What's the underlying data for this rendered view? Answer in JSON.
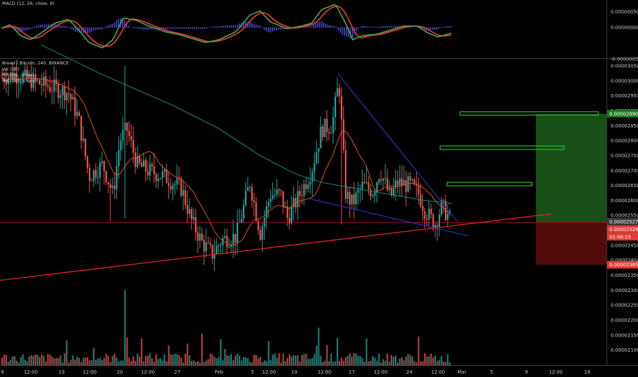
{
  "macd_panel": {
    "legend": "MACD (12, 26, close, 9)",
    "ticks": [
      "0.00000050",
      "0.00000000",
      "-0.00000050"
    ]
  },
  "price_panel": {
    "legend_title": "Bread / Bitcoin, 240, BINANCE",
    "indicators": [
      "Vol (20)",
      "MA (50, close)",
      "MA (200, close)"
    ],
    "price_ticks": [
      "0.00003050",
      "0.00003000",
      "0.00002950",
      "0.00002900",
      "0.00002850",
      "0.00002800",
      "0.00002750",
      "0.00002700",
      "0.00002650",
      "0.00002600",
      "0.00002550",
      "0.00002500",
      "0.00002450",
      "0.00002400",
      "0.00002350",
      "0.00002300",
      "0.00002250",
      "0.00002200",
      "0.00002150",
      "0.00002100"
    ],
    "badges": {
      "target": "0.00002890",
      "last_price": "0.00002527",
      "last_price_2": "0.00002526",
      "countdown": "02:08:19",
      "stop": "0.00002385"
    }
  },
  "x_ticks": [
    "6",
    "12:00",
    "13",
    "12:00",
    "20",
    "12:00",
    "27",
    "Feb",
    "5",
    "12:00",
    "10",
    "12:00",
    "17",
    "12:00",
    "24",
    "12:00",
    "Mar",
    "5",
    "9",
    "12:00",
    "16"
  ],
  "colors": {
    "up": "#26a69a",
    "down": "#ef5350",
    "ma50": "#e2561f",
    "ma200": "#14917e",
    "trend": "#e8232a",
    "wedge": "#2a2fa8",
    "profit": "#1b5e1b",
    "loss": "#5a0c0c",
    "target": "#22b524",
    "stop": "#d32f2f"
  },
  "chart_data": {
    "type": "candlestick",
    "x_range": [
      "Jan 6",
      "Mar 16"
    ],
    "y_range": [
      2.09e-05,
      3.05e-05
    ],
    "bars": 216,
    "key_prices": {
      "peak_mid_feb": 3.02e-05,
      "low_early_feb": 2.41e-05,
      "current": 2.527e-05,
      "target": 2.89e-05,
      "stop": 2.385e-05,
      "tp_levels": [
        2.89e-05,
        2.77e-05,
        2.65e-05
      ]
    }
  }
}
